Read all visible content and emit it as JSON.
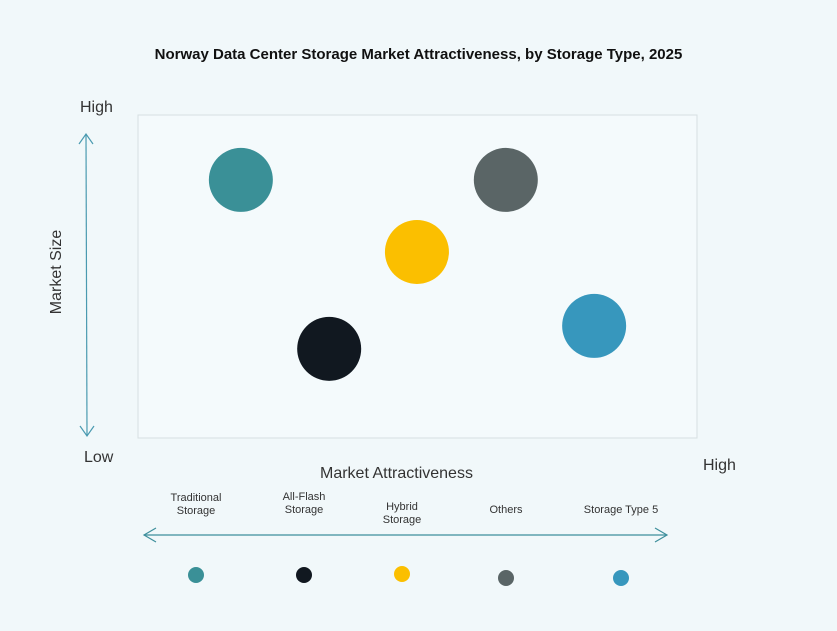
{
  "chart_data": {
    "type": "scatter",
    "title": "Norway Data Center Storage Market Attractiveness,  by Storage Type, 2025",
    "xlabel": "Market Attractiveness",
    "ylabel": "Market Size",
    "x_low": "",
    "x_high": "High",
    "y_high": "High",
    "y_low": "Low",
    "xlim": [
      0,
      100
    ],
    "ylim": [
      0,
      100
    ],
    "grid": false,
    "legend_placement": "bottom",
    "series": [
      {
        "name": "Traditional Storage",
        "x": 18.4,
        "y": 79.9,
        "color": "#3a9097"
      },
      {
        "name": "All-Flash Storage",
        "x": 34.2,
        "y": 27.6,
        "color": "#111820"
      },
      {
        "name": "Hybrid Storage",
        "x": 49.9,
        "y": 57.6,
        "color": "#fbbf00"
      },
      {
        "name": "Others",
        "x": 65.8,
        "y": 79.9,
        "color": "#5a6566"
      },
      {
        "name": "Storage Type 5",
        "x": 81.6,
        "y": 34.7,
        "color": "#3797bd"
      }
    ]
  }
}
